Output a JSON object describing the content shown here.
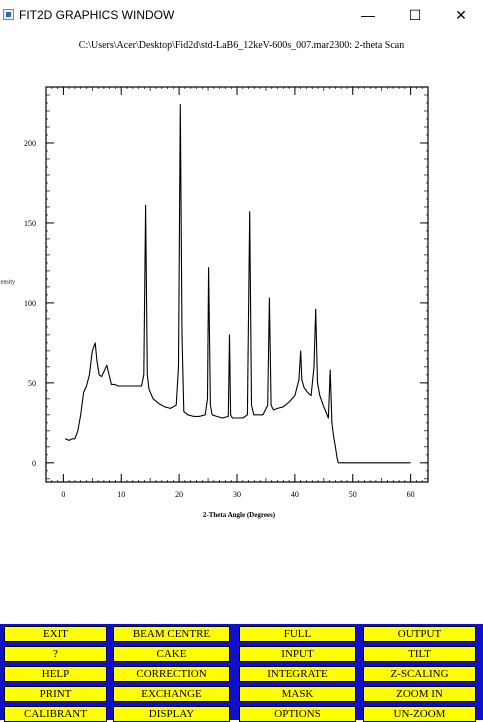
{
  "window": {
    "title": "FIT2D GRAPHICS WINDOW",
    "icon": "app-icon",
    "controls": {
      "minimize": "—",
      "maximize": "☐",
      "close": "✕"
    }
  },
  "plot": {
    "caption": "C:\\Users\\Acer\\Desktop\\Fid2d\\std-LaB6_12keV-600s_007.mar2300: 2-theta Scan"
  },
  "chart_data": {
    "type": "line",
    "xlabel": "2-Theta Angle (Degrees)",
    "ylabel": "Intensity",
    "xlim": [
      -3,
      63
    ],
    "ylim": [
      -12,
      235
    ],
    "xticks": [
      0,
      10,
      20,
      30,
      40,
      50,
      60
    ],
    "yticks": [
      0,
      50,
      100,
      150,
      200
    ],
    "x": [
      0.3,
      1.0,
      1.5,
      2.0,
      2.5,
      3.0,
      3.5,
      4.0,
      4.5,
      5.0,
      5.5,
      5.8,
      6.2,
      6.6,
      7.0,
      7.5,
      7.9,
      8.3,
      8.8,
      9.5,
      10.5,
      11.5,
      12.5,
      13.5,
      13.9,
      14.2,
      14.5,
      14.8,
      15.5,
      16.5,
      17.5,
      18.5,
      19.5,
      19.9,
      20.2,
      20.5,
      20.8,
      21.5,
      22.5,
      23.5,
      24.5,
      24.9,
      25.1,
      25.4,
      25.7,
      26.5,
      27.5,
      28.5,
      28.7,
      28.9,
      29.2,
      30.0,
      31.0,
      31.8,
      32.2,
      32.5,
      32.9,
      33.5,
      34.5,
      35.3,
      35.6,
      35.9,
      36.3,
      37.0,
      38.0,
      39.0,
      40.0,
      40.7,
      41.0,
      41.2,
      41.6,
      42.2,
      42.8,
      43.3,
      43.6,
      43.9,
      44.3,
      45.0,
      45.8,
      46.1,
      46.4,
      46.7,
      47.0,
      47.3,
      47.5,
      48.0,
      52.0,
      56.0,
      60.0
    ],
    "y": [
      15,
      14,
      15,
      15,
      20,
      30,
      44,
      48,
      55,
      70,
      75,
      64,
      55,
      54,
      57,
      61,
      55,
      49,
      49,
      48,
      48,
      48,
      48,
      48,
      55,
      161,
      55,
      46,
      40,
      37,
      35,
      34,
      36,
      60,
      224,
      80,
      32,
      30,
      29,
      29,
      30,
      40,
      122,
      36,
      30,
      29,
      28,
      29,
      80,
      30,
      28,
      28,
      28,
      30,
      157,
      36,
      30,
      30,
      30,
      36,
      103,
      36,
      33,
      34,
      35,
      38,
      42,
      52,
      70,
      52,
      47,
      44,
      42,
      60,
      96,
      50,
      42,
      35,
      28,
      58,
      25,
      16,
      10,
      3,
      0,
      0,
      0,
      0,
      0
    ]
  },
  "menu": {
    "rows": [
      [
        "EXIT",
        "BEAM CENTRE",
        "FULL",
        "OUTPUT"
      ],
      [
        "?",
        "CAKE",
        "INPUT",
        "TILT"
      ],
      [
        "HELP",
        "CORRECTION",
        "INTEGRATE",
        "Z-SCALING"
      ],
      [
        "PRINT",
        "EXCHANGE",
        "MASK",
        "ZOOM IN"
      ],
      [
        "CALIBRANT",
        "DISPLAY",
        "OPTIONS",
        "UN-ZOOM"
      ]
    ]
  },
  "colors": {
    "menu_background": "#1010c8",
    "button_face": "#ffff00",
    "plot_line": "#000000"
  }
}
